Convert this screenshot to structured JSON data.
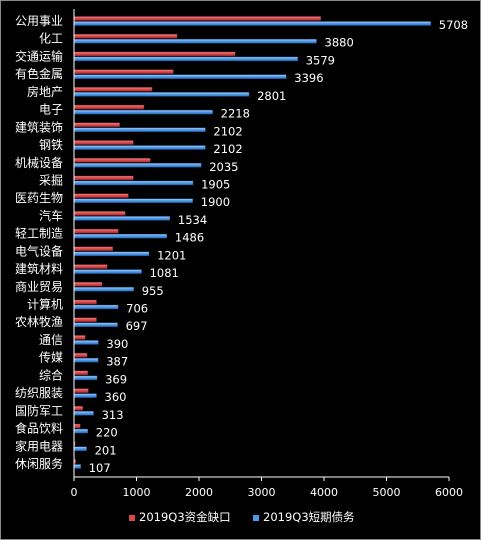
{
  "chart_data": {
    "type": "bar",
    "orientation": "horizontal",
    "categories": [
      "公用事业",
      "化工",
      "交通运输",
      "有色金属",
      "房地产",
      "电子",
      "建筑装饰",
      "钢铁",
      "机械设备",
      "采掘",
      "医药生物",
      "汽车",
      "轻工制造",
      "电气设备",
      "建筑材料",
      "商业贸易",
      "计算机",
      "农林牧渔",
      "通信",
      "传媒",
      "综合",
      "纺织服装",
      "国防军工",
      "食品饮料",
      "家用电器",
      "休闲服务"
    ],
    "series": [
      {
        "name": "2019Q3资金缺口",
        "color": "#d9484a",
        "values": [
          3950,
          1650,
          2580,
          1590,
          1250,
          1120,
          730,
          950,
          1220,
          950,
          870,
          820,
          710,
          620,
          530,
          450,
          360,
          360,
          180,
          210,
          220,
          230,
          140,
          100,
          20,
          30
        ]
      },
      {
        "name": "2019Q3短期债务",
        "color": "#4f9ae6",
        "values": [
          5708,
          3880,
          3579,
          3396,
          2801,
          2218,
          2102,
          2102,
          2035,
          1905,
          1900,
          1534,
          1486,
          1201,
          1081,
          955,
          706,
          697,
          390,
          387,
          369,
          360,
          313,
          220,
          201,
          107
        ]
      }
    ],
    "data_labels": [
      "5708",
      "3880",
      "3579",
      "3396",
      "2801",
      "2218",
      "2102",
      "2102",
      "2035",
      "1905",
      "1900",
      "1534",
      "1486",
      "1201",
      "1081",
      "955",
      "706",
      "697",
      "390",
      "387",
      "369",
      "360",
      "313",
      "220",
      "201",
      "107"
    ],
    "xlim": [
      0,
      6000
    ],
    "x_ticks": [
      "0",
      "1000",
      "2000",
      "3000",
      "4000",
      "5000",
      "6000"
    ],
    "grid": false,
    "legend_position": "bottom"
  }
}
